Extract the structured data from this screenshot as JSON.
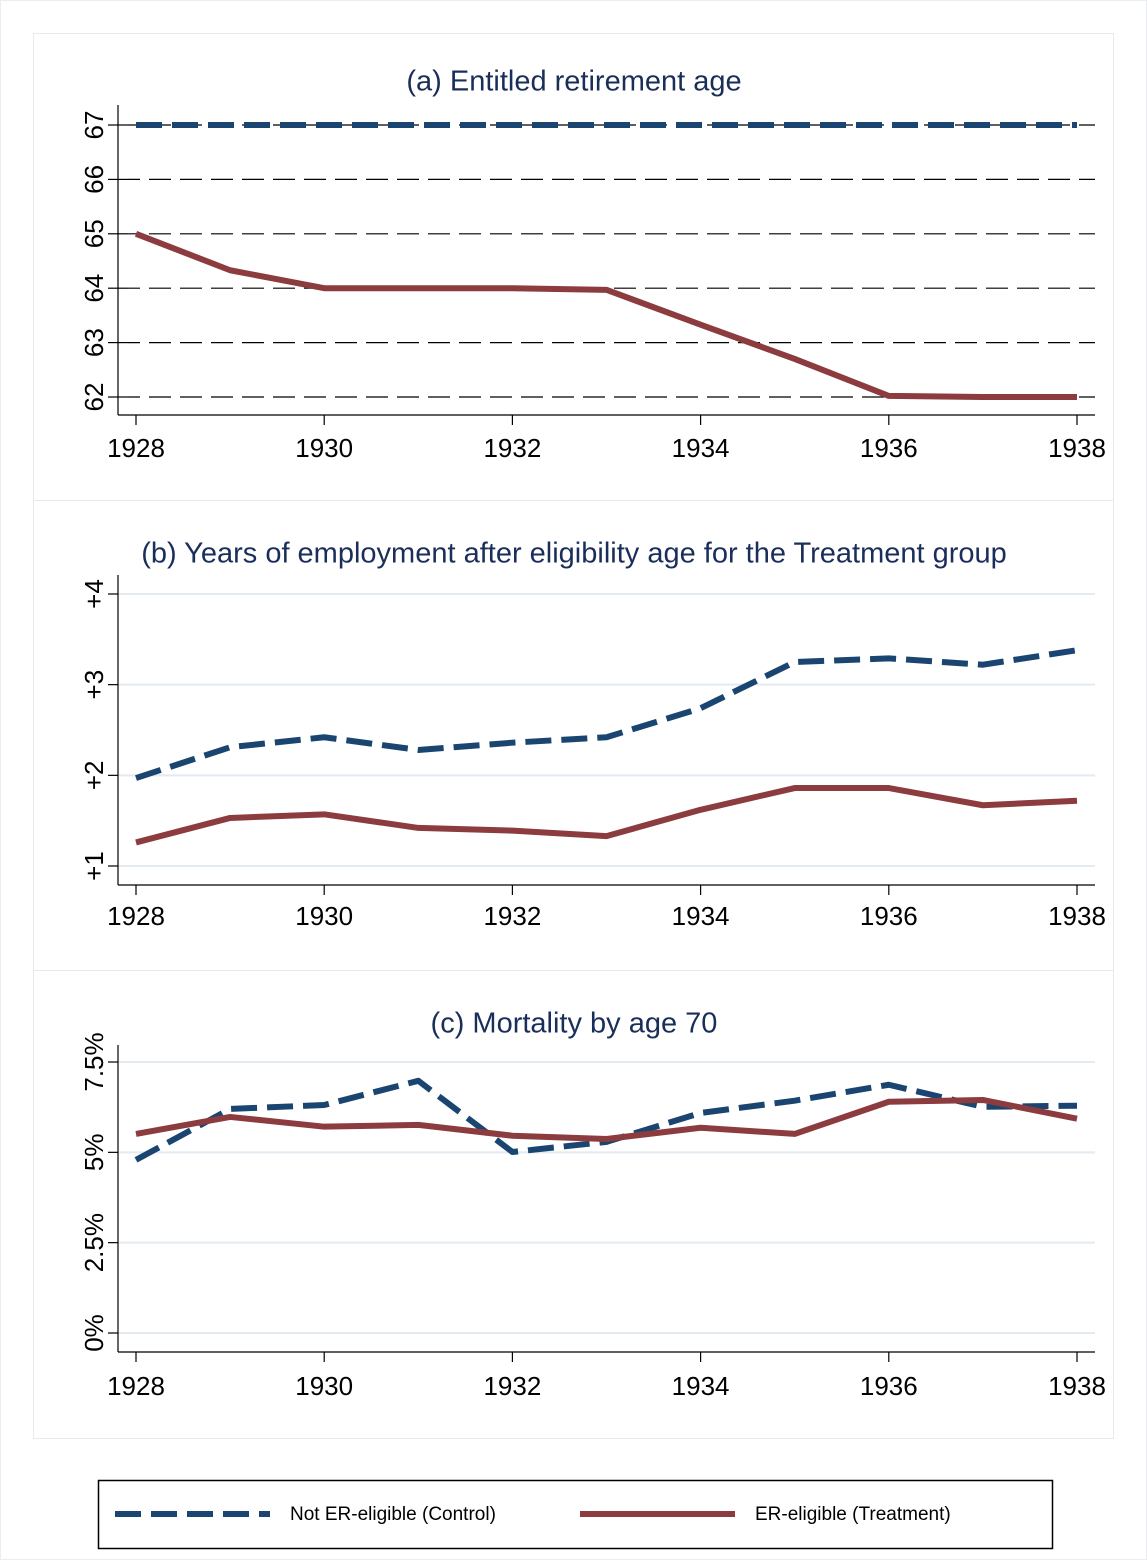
{
  "chart_data": [
    {
      "type": "line",
      "title": "(a) Entitled retirement age",
      "x": [
        1928,
        1929,
        1930,
        1931,
        1932,
        1933,
        1934,
        1935,
        1936,
        1937,
        1938
      ],
      "xlim": [
        1928,
        1938
      ],
      "xticks": [
        1928,
        1930,
        1932,
        1934,
        1936,
        1938
      ],
      "ylim": [
        62,
        67
      ],
      "yticks": [
        62,
        63,
        64,
        65,
        66,
        67
      ],
      "grid": true,
      "grid_style": "dashed",
      "series": [
        {
          "name": "Not ER-eligible (Control)",
          "color": "#1b4571",
          "dash": true,
          "values": [
            67,
            67,
            67,
            67,
            67,
            67,
            67,
            67,
            67,
            67,
            67
          ]
        },
        {
          "name": "ER-eligible (Treatment)",
          "color": "#8c3b3f",
          "dash": false,
          "values": [
            65,
            64.33,
            64,
            64,
            64,
            63.97,
            63.33,
            62.7,
            62.02,
            62,
            62
          ]
        }
      ]
    },
    {
      "type": "line",
      "title": "(b) Years of employment after eligibility age for the Treatment group",
      "x": [
        1928,
        1929,
        1930,
        1931,
        1932,
        1933,
        1934,
        1935,
        1936,
        1937,
        1938
      ],
      "xlim": [
        1928,
        1938
      ],
      "xticks": [
        1928,
        1930,
        1932,
        1934,
        1936,
        1938
      ],
      "ylim": [
        1,
        4
      ],
      "yticks": [
        {
          "value": 1,
          "label": "+1"
        },
        {
          "value": 2,
          "label": "+2"
        },
        {
          "value": 3,
          "label": "+3"
        },
        {
          "value": 4,
          "label": "+4"
        }
      ],
      "grid": true,
      "grid_style": "solid",
      "series": [
        {
          "color": "#1b4571",
          "dash": true,
          "values": [
            1.97,
            2.31,
            2.42,
            2.28,
            2.36,
            2.42,
            2.74,
            3.25,
            3.29,
            3.22,
            3.38
          ]
        },
        {
          "color": "#8c3b3f",
          "dash": false,
          "values": [
            1.26,
            1.53,
            1.57,
            1.42,
            1.39,
            1.33,
            1.62,
            1.86,
            1.86,
            1.67,
            1.72
          ]
        }
      ]
    },
    {
      "type": "line",
      "title": "(c) Mortality by age 70",
      "x": [
        1928,
        1929,
        1930,
        1931,
        1932,
        1933,
        1934,
        1935,
        1936,
        1937,
        1938
      ],
      "xlim": [
        1928,
        1938
      ],
      "xticks": [
        1928,
        1930,
        1932,
        1934,
        1936,
        1938
      ],
      "ylim": [
        0,
        7.5
      ],
      "yticks": [
        {
          "value": 0,
          "label": "0%"
        },
        {
          "value": 2.5,
          "label": "2.5%"
        },
        {
          "value": 5,
          "label": "5%"
        },
        {
          "value": 7.5,
          "label": "7.5%"
        }
      ],
      "grid": true,
      "grid_style": "solid",
      "series": [
        {
          "color": "#1b4571",
          "dash": true,
          "values": [
            4.79,
            6.2,
            6.31,
            6.98,
            5.01,
            5.29,
            6.09,
            6.43,
            6.87,
            6.26,
            6.29
          ]
        },
        {
          "color": "#8c3b3f",
          "dash": false,
          "values": [
            5.51,
            5.98,
            5.71,
            5.76,
            5.46,
            5.37,
            5.68,
            5.51,
            6.4,
            6.45,
            5.93
          ]
        }
      ]
    }
  ]
}
